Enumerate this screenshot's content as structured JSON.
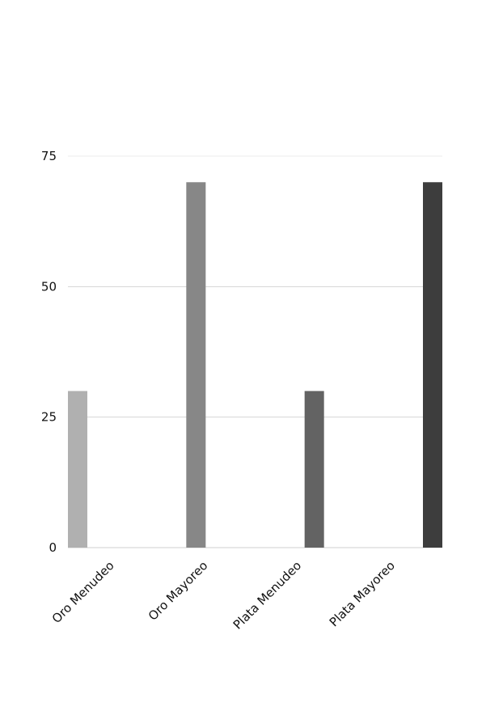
{
  "chart_data": {
    "type": "bar",
    "categories": [
      "Oro Menudeo",
      "Oro Mayoreo",
      "Plata Menudeo",
      "Plata Mayoreo"
    ],
    "values": [
      30,
      70,
      30,
      70
    ],
    "colors": [
      "#b0b0b0",
      "#878787",
      "#636363",
      "#3d3d3d"
    ],
    "yticks": [
      0,
      25,
      50,
      75
    ],
    "ylim": [
      0,
      75
    ],
    "grid": true,
    "gridline_color": "#d4d4d4",
    "legend": "none"
  }
}
